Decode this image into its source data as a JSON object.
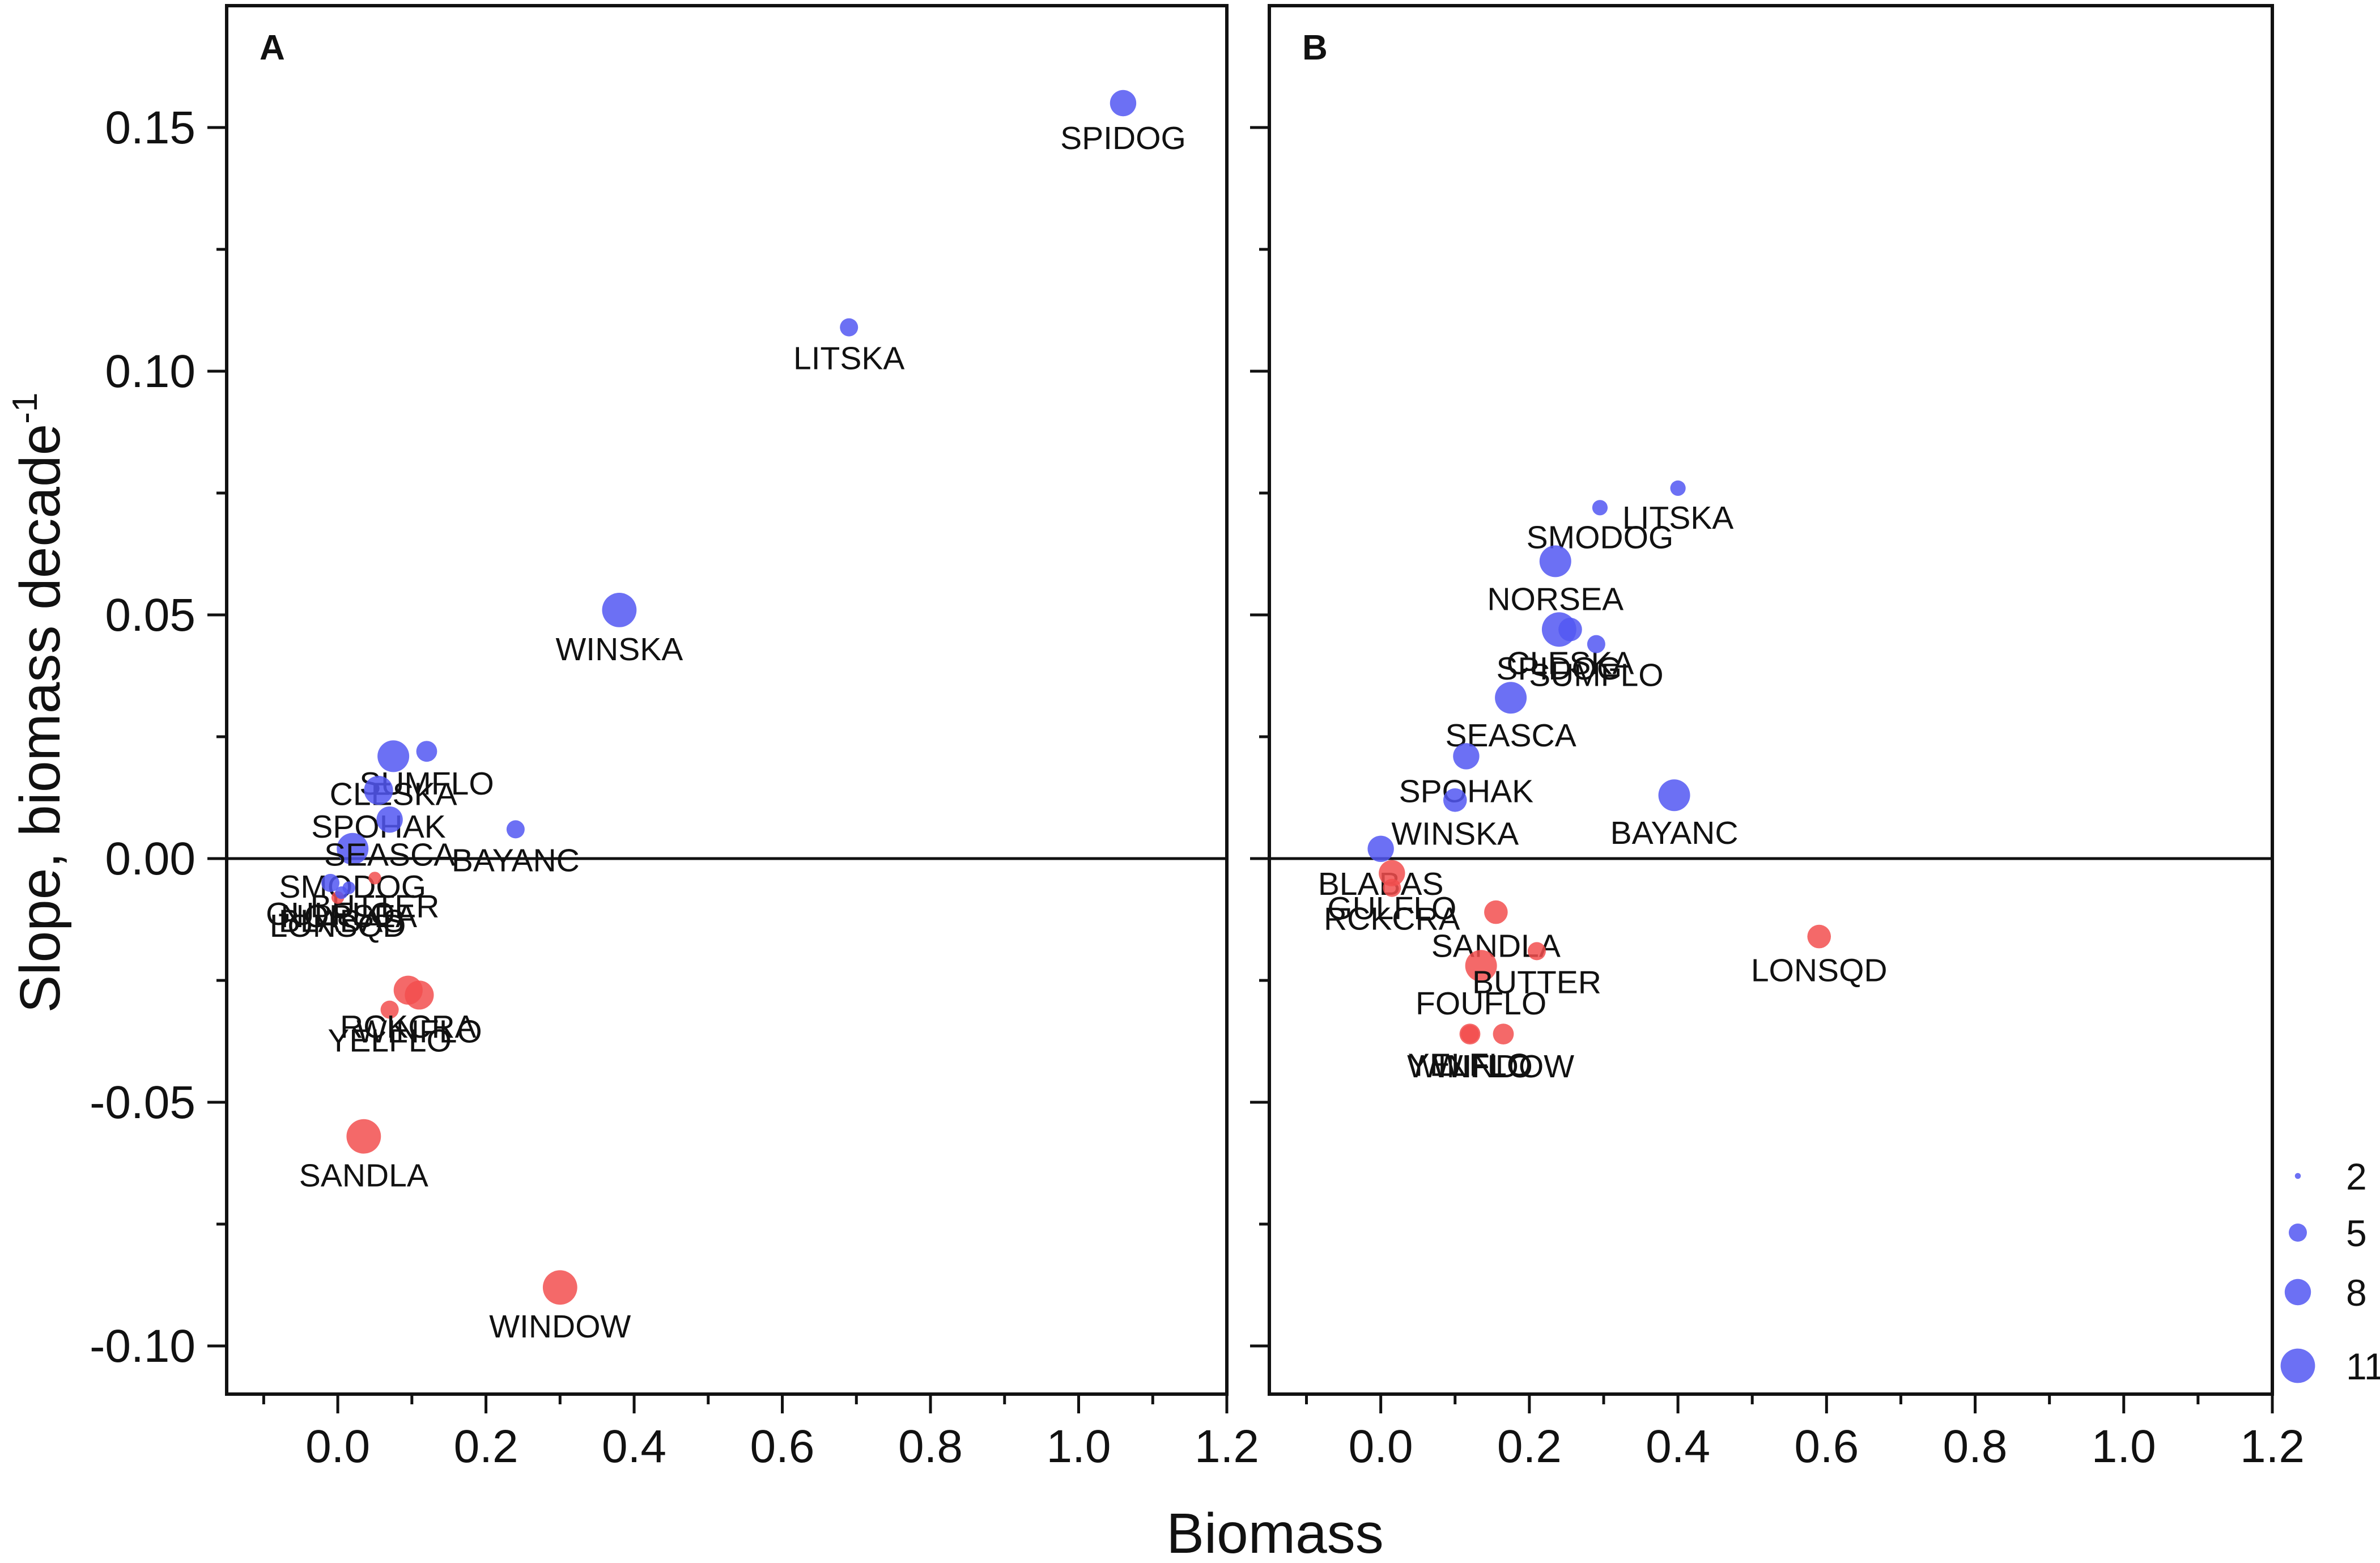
{
  "chart_data": [
    {
      "type": "scatter",
      "panel": "A",
      "xlabel": "Biomass",
      "ylabel": "Slope, biomass decade",
      "ylabel_superscript": "-1",
      "xlim": [
        -0.15,
        1.2
      ],
      "ylim": [
        -0.11,
        0.175
      ],
      "xticks": [
        0.0,
        0.2,
        0.4,
        0.6,
        0.8,
        1.0,
        1.2
      ],
      "xtick_labels": [
        "0.0",
        "0.2",
        "0.4",
        "0.6",
        "0.8",
        "1.0",
        "1.2"
      ],
      "yticks": [
        -0.1,
        -0.05,
        0.0,
        0.05,
        0.1,
        0.15
      ],
      "ytick_labels": [
        "-0.10",
        "-0.05",
        "0.00",
        "0.05",
        "0.10",
        "0.15"
      ],
      "reference_line_y": 0,
      "points": [
        {
          "label": "SPIDOG",
          "x": 1.06,
          "y": 0.155,
          "size": 8,
          "sign": "positive"
        },
        {
          "label": "LITSKA",
          "x": 0.69,
          "y": 0.109,
          "size": 5,
          "sign": "positive"
        },
        {
          "label": "WINSKA",
          "x": 0.38,
          "y": 0.051,
          "size": 11,
          "sign": "positive"
        },
        {
          "label": "SUMFLO",
          "x": 0.12,
          "y": 0.022,
          "size": 6,
          "sign": "positive"
        },
        {
          "label": "CLESKA",
          "x": 0.075,
          "y": 0.021,
          "size": 10,
          "sign": "positive"
        },
        {
          "label": "SPOHAK",
          "x": 0.055,
          "y": 0.014,
          "size": 9,
          "sign": "positive"
        },
        {
          "label": "BAYANC",
          "x": 0.24,
          "y": 0.006,
          "size": 5,
          "sign": "positive"
        },
        {
          "label": "SMODOG",
          "x": 0.02,
          "y": 0.002,
          "size": 10,
          "sign": "positive"
        },
        {
          "label": "SEASCA",
          "x": 0.07,
          "y": 0.008,
          "size": 8,
          "sign": "positive"
        },
        {
          "label": "BUTTER",
          "x": 0.05,
          "y": -0.004,
          "size": 3,
          "sign": "negative"
        },
        {
          "label": "GULFLO",
          "x": -0.01,
          "y": -0.005,
          "size": 5,
          "sign": "positive"
        },
        {
          "label": "NORSEA",
          "x": 0.015,
          "y": -0.006,
          "size": 3,
          "sign": "positive"
        },
        {
          "label": "LONSQD",
          "x": 0.0,
          "y": -0.008,
          "size": 3,
          "sign": "negative"
        },
        {
          "label": "BLABAS",
          "x": 0.005,
          "y": -0.007,
          "size": 3,
          "sign": "positive"
        },
        {
          "label": "YELFLO",
          "x": 0.07,
          "y": -0.031,
          "size": 5,
          "sign": "negative"
        },
        {
          "label": "WINFLO",
          "x": 0.11,
          "y": -0.028,
          "size": 9,
          "sign": "negative"
        },
        {
          "label": "RCKCRA",
          "x": 0.095,
          "y": -0.027,
          "size": 9,
          "sign": "negative"
        },
        {
          "label": "SANDLA",
          "x": 0.035,
          "y": -0.057,
          "size": 11,
          "sign": "negative"
        },
        {
          "label": "WINDOW",
          "x": 0.3,
          "y": -0.088,
          "size": 11,
          "sign": "negative"
        }
      ]
    },
    {
      "type": "scatter",
      "panel": "B",
      "xlabel": "Biomass",
      "xlim": [
        -0.15,
        1.2
      ],
      "ylim": [
        -0.11,
        0.175
      ],
      "xticks": [
        0.0,
        0.2,
        0.4,
        0.6,
        0.8,
        1.0,
        1.2
      ],
      "xtick_labels": [
        "0.0",
        "0.2",
        "0.4",
        "0.6",
        "0.8",
        "1.0",
        "1.2"
      ],
      "reference_line_y": 0,
      "points": [
        {
          "label": "LITSKA",
          "x": 0.4,
          "y": 0.076,
          "size": 4,
          "sign": "positive"
        },
        {
          "label": "SMODOG",
          "x": 0.295,
          "y": 0.072,
          "size": 4,
          "sign": "positive"
        },
        {
          "label": "NORSEA",
          "x": 0.235,
          "y": 0.061,
          "size": 10,
          "sign": "positive"
        },
        {
          "label": "SPIDOG",
          "x": 0.24,
          "y": 0.047,
          "size": 11,
          "sign": "positive"
        },
        {
          "label": "CLESKA",
          "x": 0.255,
          "y": 0.047,
          "size": 7,
          "sign": "positive"
        },
        {
          "label": "SUMFLO",
          "x": 0.29,
          "y": 0.044,
          "size": 5,
          "sign": "positive"
        },
        {
          "label": "SEASCA",
          "x": 0.175,
          "y": 0.033,
          "size": 10,
          "sign": "positive"
        },
        {
          "label": "SPOHAK",
          "x": 0.115,
          "y": 0.021,
          "size": 8,
          "sign": "positive"
        },
        {
          "label": "WINSKA",
          "x": 0.1,
          "y": 0.012,
          "size": 7,
          "sign": "positive"
        },
        {
          "label": "BAYANC",
          "x": 0.395,
          "y": 0.013,
          "size": 10,
          "sign": "positive"
        },
        {
          "label": "BLABAS",
          "x": 0.0,
          "y": 0.002,
          "size": 8,
          "sign": "positive"
        },
        {
          "label": "GULFLO",
          "x": 0.015,
          "y": -0.003,
          "size": 8,
          "sign": "negative"
        },
        {
          "label": "RCKCRA",
          "x": 0.015,
          "y": -0.006,
          "size": 5,
          "sign": "negative"
        },
        {
          "label": "SANDLA",
          "x": 0.155,
          "y": -0.011,
          "size": 7,
          "sign": "negative"
        },
        {
          "label": "FOUFLO",
          "x": 0.135,
          "y": -0.022,
          "size": 10,
          "sign": "negative"
        },
        {
          "label": "BUTTER",
          "x": 0.21,
          "y": -0.019,
          "size": 5,
          "sign": "negative"
        },
        {
          "label": "WINFLO",
          "x": 0.12,
          "y": -0.036,
          "size": 6,
          "sign": "negative"
        },
        {
          "label": "YELFLO",
          "x": 0.12,
          "y": -0.036,
          "size": 5,
          "sign": "negative"
        },
        {
          "label": "WINDOW",
          "x": 0.165,
          "y": -0.036,
          "size": 6,
          "sign": "negative"
        },
        {
          "label": "LONSQD",
          "x": 0.59,
          "y": -0.016,
          "size": 7,
          "sign": "negative"
        }
      ]
    }
  ],
  "legend": {
    "title": "",
    "placement": "bottom-right",
    "entries": [
      {
        "label": "2",
        "size": 2
      },
      {
        "label": "5",
        "size": 5
      },
      {
        "label": "8",
        "size": 8
      },
      {
        "label": "11",
        "size": 11
      }
    ]
  },
  "colors": {
    "positive": "#5257f2",
    "negative": "#f24f4f",
    "axis": "#111111",
    "background": "#ffffff"
  }
}
